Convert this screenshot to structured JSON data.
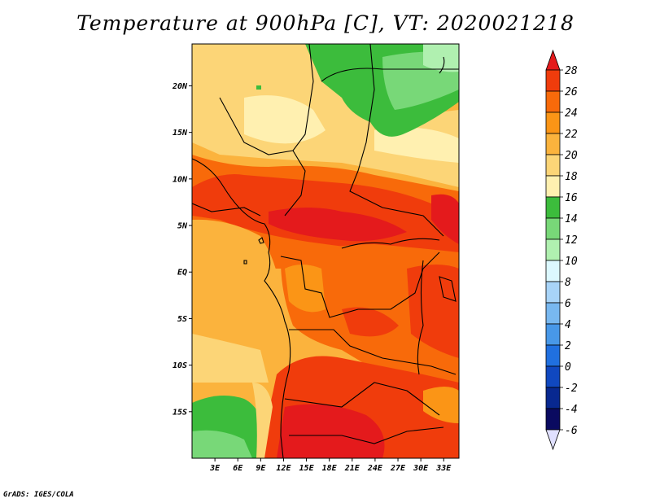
{
  "title": "Temperature at 900hPa [C], VT: 2020021218",
  "credit": "GrADS: IGES/COLA",
  "map": {
    "lon_range": [
      0,
      35
    ],
    "lat_range": [
      -20,
      24.5
    ],
    "x_ticks": [
      {
        "value": 3,
        "label": "3E"
      },
      {
        "value": 6,
        "label": "6E"
      },
      {
        "value": 9,
        "label": "9E"
      },
      {
        "value": 12,
        "label": "12E"
      },
      {
        "value": 15,
        "label": "15E"
      },
      {
        "value": 18,
        "label": "18E"
      },
      {
        "value": 21,
        "label": "21E"
      },
      {
        "value": 24,
        "label": "24E"
      },
      {
        "value": 27,
        "label": "27E"
      },
      {
        "value": 30,
        "label": "30E"
      },
      {
        "value": 33,
        "label": "33E"
      }
    ],
    "y_ticks": [
      {
        "value": 20,
        "label": "20N"
      },
      {
        "value": 15,
        "label": "15N"
      },
      {
        "value": 10,
        "label": "10N"
      },
      {
        "value": 5,
        "label": "5N"
      },
      {
        "value": 0,
        "label": "EQ"
      },
      {
        "value": -5,
        "label": "5S"
      },
      {
        "value": -10,
        "label": "10S"
      },
      {
        "value": -15,
        "label": "15S"
      }
    ]
  },
  "colorbar": {
    "levels": [
      "28",
      "26",
      "24",
      "22",
      "20",
      "18",
      "16",
      "14",
      "12",
      "10",
      "8",
      "6",
      "4",
      "2",
      "0",
      "-2",
      "-4",
      "-6"
    ],
    "colors": [
      "#e41a1c",
      "#f03c0c",
      "#f86a0a",
      "#fb9516",
      "#fbb33d",
      "#fcd577",
      "#fff0b0",
      "#3cbc3c",
      "#78d878",
      "#b0f0b0",
      "#dcf8ff",
      "#a8d4f8",
      "#78b8f0",
      "#4898e8",
      "#2070e0",
      "#1048c0",
      "#082890",
      "#0a0a60",
      "#e0e0ff"
    ]
  }
}
